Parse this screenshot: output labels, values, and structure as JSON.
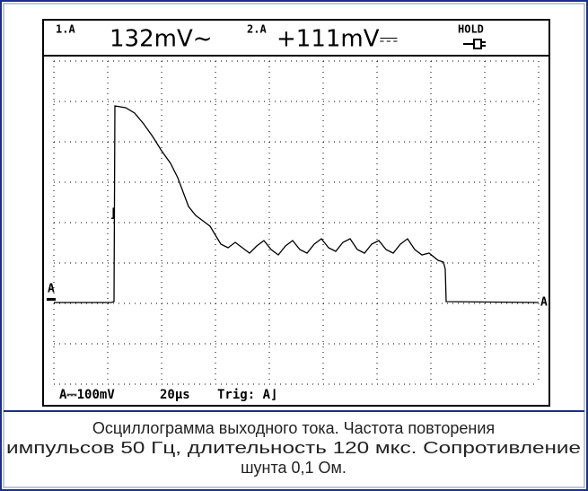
{
  "header": {
    "ch1_label": "1.A",
    "ch1_reading": "132mV~",
    "ch2_label": "2.A",
    "ch2_reading": "+111mV⎓",
    "status": "HOLD"
  },
  "markers": {
    "left": "A",
    "right": "A"
  },
  "footer": {
    "scale": "A⎓100mV",
    "timebase": "20µs",
    "trigger": "Trig: A⌋"
  },
  "caption": {
    "lines": [
      "Осциллограмма выходного тока. Частота повторения",
      "импульсов 50 Гц, длительность 120 мкс. Сопротивление",
      "шунта 0,1 Ом."
    ]
  }
}
